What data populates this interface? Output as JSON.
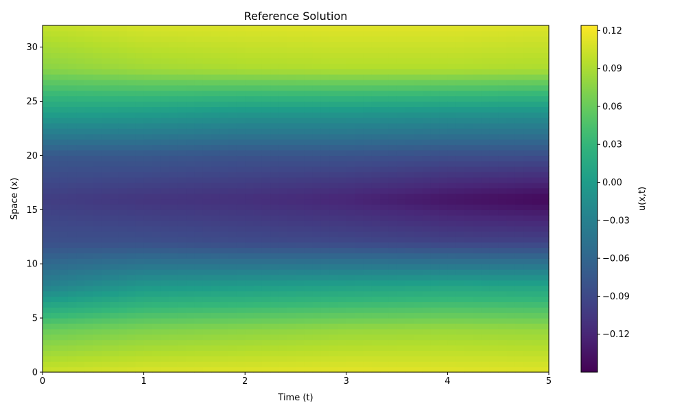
{
  "chart_data": {
    "type": "heatmap",
    "title": "Reference Solution",
    "xlabel": "Time (t)",
    "ylabel": "Space (x)",
    "xlim": [
      0,
      5
    ],
    "ylim": [
      0,
      32
    ],
    "xticks": [
      "0",
      "1",
      "2",
      "3",
      "4",
      "5"
    ],
    "yticks": [
      "0",
      "5",
      "10",
      "15",
      "20",
      "25",
      "30"
    ],
    "colorbar": {
      "label": "u(x,t)",
      "range": [
        -0.15,
        0.124
      ],
      "ticks": [
        "−0.12",
        "−0.09",
        "−0.06",
        "−0.03",
        "0.00",
        "0.03",
        "0.06",
        "0.09",
        "0.12"
      ],
      "tick_values": [
        -0.12,
        -0.09,
        -0.06,
        -0.03,
        0.0,
        0.03,
        0.06,
        0.09,
        0.12
      ],
      "colormap": "viridis"
    },
    "field": {
      "description_of_values": "u(x,t) sampled on a time by space grid",
      "t": [
        0,
        1,
        2,
        3,
        4,
        5
      ],
      "x": [
        0,
        4,
        8,
        12,
        16,
        20,
        24,
        28,
        32
      ],
      "u": [
        [
          0.104,
          0.06,
          -0.03,
          -0.083,
          -0.1,
          -0.075,
          0.005,
          0.075,
          0.1
        ],
        [
          0.11,
          0.07,
          -0.005,
          -0.083,
          -0.108,
          -0.075,
          0.002,
          0.085,
          0.108
        ],
        [
          0.112,
          0.075,
          0.0,
          -0.088,
          -0.113,
          -0.08,
          -0.005,
          0.09,
          0.11
        ],
        [
          0.114,
          0.08,
          0.005,
          -0.09,
          -0.122,
          -0.08,
          -0.005,
          0.092,
          0.112
        ],
        [
          0.113,
          0.082,
          0.01,
          -0.095,
          -0.135,
          -0.085,
          -0.008,
          0.092,
          0.112
        ],
        [
          0.112,
          0.08,
          0.008,
          -0.095,
          -0.145,
          -0.085,
          -0.01,
          0.09,
          0.11
        ]
      ]
    }
  }
}
